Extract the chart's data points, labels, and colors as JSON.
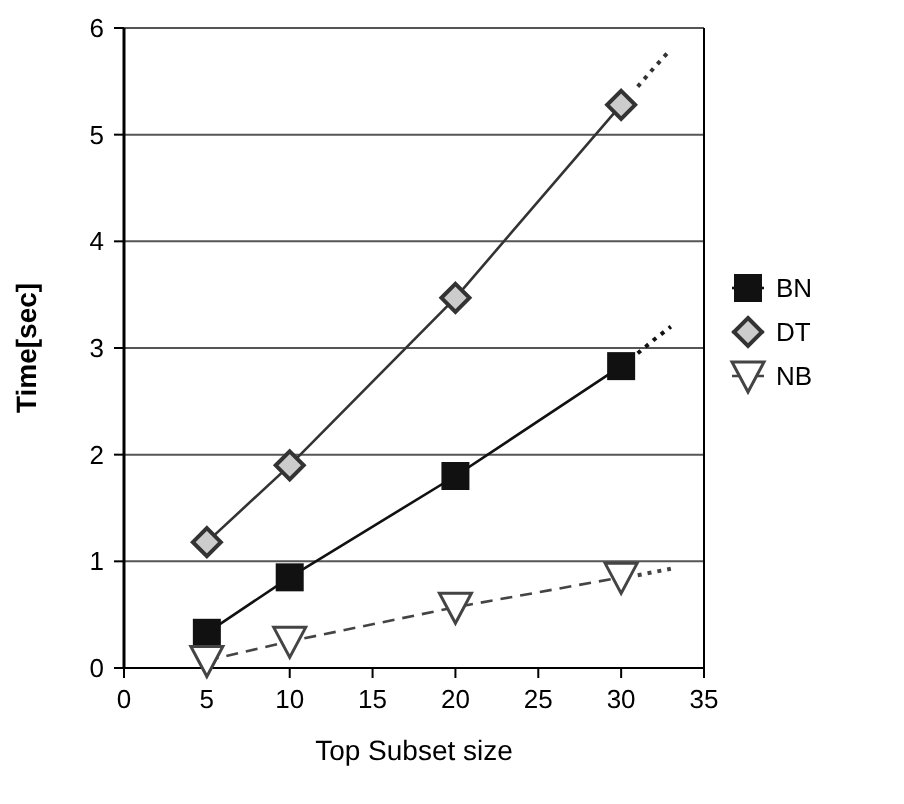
{
  "chart_data": {
    "type": "line",
    "xlabel": "Top Subset size",
    "ylabel": "Time[sec]",
    "x": [
      5,
      10,
      20,
      30
    ],
    "xlim": [
      0,
      35
    ],
    "xticks": [
      0,
      5,
      10,
      15,
      20,
      25,
      30,
      35
    ],
    "ylim": [
      0,
      6
    ],
    "yticks": [
      0,
      1,
      2,
      3,
      4,
      5,
      6
    ],
    "grid": "y",
    "legend": "right",
    "series": [
      {
        "name": "BN",
        "color": "#111111",
        "values": [
          0.33,
          0.85,
          1.8,
          2.83
        ],
        "marker": "square",
        "line_style": "solid"
      },
      {
        "name": "DT",
        "color": "#333333",
        "values": [
          1.18,
          1.9,
          3.47,
          5.28
        ],
        "marker": "diamond",
        "line_style": "solid"
      },
      {
        "name": "NB",
        "color": "#444444",
        "values": [
          0.07,
          0.25,
          0.57,
          0.85
        ],
        "marker": "triangle",
        "line_style": "dashed"
      },
      {
        "color": "#333333",
        "x": [
          31,
          32,
          33
        ],
        "values": [
          5.45,
          5.63,
          5.8
        ],
        "marker": "none",
        "line_style": "dotted"
      },
      {
        "color": "#111111",
        "x": [
          31,
          32,
          33
        ],
        "values": [
          2.95,
          3.08,
          3.2
        ],
        "marker": "none",
        "line_style": "dotted"
      },
      {
        "color": "#444444",
        "x": [
          31,
          32,
          33
        ],
        "values": [
          0.87,
          0.9,
          0.93
        ],
        "marker": "none",
        "line_style": "dotted"
      }
    ]
  }
}
